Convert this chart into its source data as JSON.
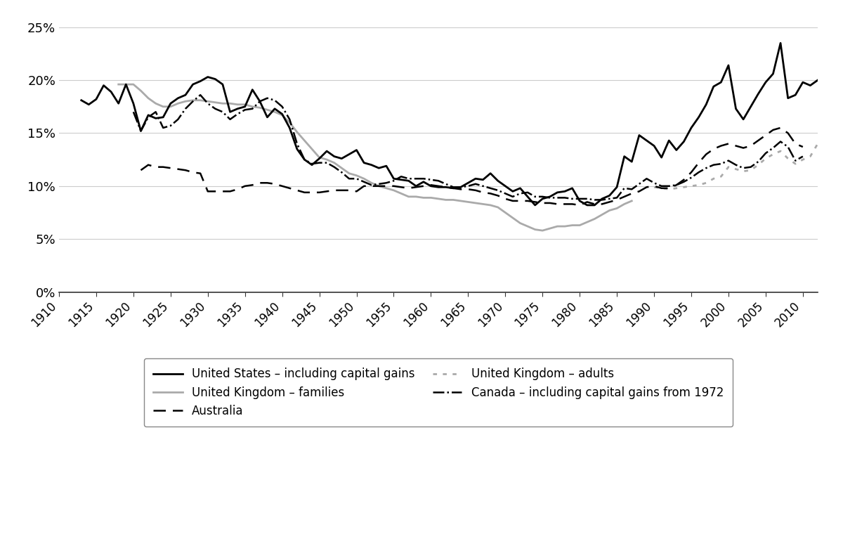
{
  "xlim": [
    1910,
    2012
  ],
  "ylim": [
    0,
    0.26
  ],
  "yticks": [
    0,
    0.05,
    0.1,
    0.15,
    0.2,
    0.25
  ],
  "ytick_labels": [
    "0%",
    "5%",
    "10%",
    "15%",
    "20%",
    "25%"
  ],
  "xticks": [
    1910,
    1915,
    1920,
    1925,
    1930,
    1935,
    1940,
    1945,
    1950,
    1955,
    1960,
    1965,
    1970,
    1975,
    1980,
    1985,
    1990,
    1995,
    2000,
    2005,
    2010
  ],
  "background_color": "#ffffff",
  "grid_color": "#cccccc",
  "series": {
    "us": {
      "label": "United States – including capital gains",
      "color": "#000000",
      "linewidth": 2.0,
      "linestyle": "solid",
      "data": {
        "year": [
          1913,
          1914,
          1915,
          1916,
          1917,
          1918,
          1919,
          1920,
          1921,
          1922,
          1923,
          1924,
          1925,
          1926,
          1927,
          1928,
          1929,
          1930,
          1931,
          1932,
          1933,
          1934,
          1935,
          1936,
          1937,
          1938,
          1939,
          1940,
          1941,
          1942,
          1943,
          1944,
          1945,
          1946,
          1947,
          1948,
          1949,
          1950,
          1951,
          1952,
          1953,
          1954,
          1955,
          1956,
          1957,
          1958,
          1959,
          1960,
          1961,
          1962,
          1963,
          1964,
          1965,
          1966,
          1967,
          1968,
          1969,
          1970,
          1971,
          1972,
          1973,
          1974,
          1975,
          1976,
          1977,
          1978,
          1979,
          1980,
          1981,
          1982,
          1983,
          1984,
          1985,
          1986,
          1987,
          1988,
          1989,
          1990,
          1991,
          1992,
          1993,
          1994,
          1995,
          1996,
          1997,
          1998,
          1999,
          2000,
          2001,
          2002,
          2003,
          2004,
          2005,
          2006,
          2007,
          2008,
          2009,
          2010,
          2011,
          2012
        ],
        "value": [
          0.181,
          0.177,
          0.182,
          0.195,
          0.189,
          0.178,
          0.196,
          0.178,
          0.152,
          0.167,
          0.164,
          0.165,
          0.178,
          0.183,
          0.186,
          0.196,
          0.199,
          0.203,
          0.201,
          0.196,
          0.17,
          0.173,
          0.175,
          0.191,
          0.18,
          0.165,
          0.173,
          0.168,
          0.155,
          0.135,
          0.125,
          0.12,
          0.126,
          0.133,
          0.128,
          0.126,
          0.13,
          0.134,
          0.122,
          0.12,
          0.117,
          0.119,
          0.107,
          0.106,
          0.105,
          0.1,
          0.104,
          0.1,
          0.099,
          0.099,
          0.098,
          0.099,
          0.103,
          0.107,
          0.106,
          0.112,
          0.105,
          0.1,
          0.095,
          0.098,
          0.09,
          0.082,
          0.088,
          0.09,
          0.094,
          0.095,
          0.098,
          0.086,
          0.082,
          0.082,
          0.088,
          0.091,
          0.099,
          0.128,
          0.123,
          0.148,
          0.143,
          0.138,
          0.127,
          0.143,
          0.134,
          0.142,
          0.155,
          0.165,
          0.177,
          0.194,
          0.198,
          0.214,
          0.173,
          0.163,
          0.175,
          0.187,
          0.198,
          0.206,
          0.235,
          0.183,
          0.186,
          0.198,
          0.195,
          0.2
        ]
      }
    },
    "australia": {
      "label": "Australia",
      "color": "#000000",
      "linewidth": 1.8,
      "linestyle": "dashed",
      "dash_pattern": [
        7,
        4
      ],
      "data": {
        "year": [
          1921,
          1922,
          1923,
          1924,
          1925,
          1926,
          1927,
          1928,
          1929,
          1930,
          1931,
          1932,
          1933,
          1934,
          1935,
          1936,
          1937,
          1938,
          1939,
          1940,
          1941,
          1942,
          1943,
          1944,
          1945,
          1946,
          1947,
          1948,
          1949,
          1950,
          1951,
          1952,
          1953,
          1954,
          1955,
          1956,
          1957,
          1958,
          1959,
          1960,
          1961,
          1962,
          1963,
          1964,
          1965,
          1966,
          1967,
          1968,
          1969,
          1970,
          1971,
          1972,
          1973,
          1974,
          1975,
          1976,
          1977,
          1978,
          1979,
          1980,
          1981,
          1982,
          1983,
          1984,
          1985,
          1986,
          1987,
          1988,
          1989,
          1990,
          1991,
          1992,
          1993,
          1994,
          1995,
          1996,
          1997,
          1998,
          1999,
          2000,
          2001,
          2002,
          2003,
          2004,
          2005,
          2006,
          2007,
          2008,
          2009,
          2010
        ],
        "value": [
          0.115,
          0.12,
          0.118,
          0.118,
          0.117,
          0.116,
          0.115,
          0.113,
          0.112,
          0.095,
          0.095,
          0.095,
          0.095,
          0.097,
          0.1,
          0.101,
          0.103,
          0.103,
          0.102,
          0.1,
          0.098,
          0.096,
          0.094,
          0.094,
          0.094,
          0.095,
          0.096,
          0.096,
          0.096,
          0.095,
          0.1,
          0.1,
          0.1,
          0.1,
          0.1,
          0.099,
          0.098,
          0.099,
          0.1,
          0.101,
          0.1,
          0.099,
          0.098,
          0.097,
          0.097,
          0.096,
          0.094,
          0.093,
          0.091,
          0.088,
          0.086,
          0.086,
          0.086,
          0.085,
          0.084,
          0.084,
          0.083,
          0.083,
          0.083,
          0.082,
          0.085,
          0.083,
          0.083,
          0.085,
          0.087,
          0.09,
          0.093,
          0.095,
          0.099,
          0.1,
          0.098,
          0.098,
          0.101,
          0.106,
          0.113,
          0.122,
          0.13,
          0.135,
          0.138,
          0.14,
          0.138,
          0.136,
          0.138,
          0.143,
          0.148,
          0.153,
          0.155,
          0.15,
          0.14,
          0.137
        ]
      }
    },
    "canada": {
      "label": "Canada – including capital gains from 1972",
      "color": "#000000",
      "linewidth": 1.8,
      "linestyle": "dashdot",
      "data": {
        "year": [
          1920,
          1921,
          1922,
          1923,
          1924,
          1925,
          1926,
          1927,
          1928,
          1929,
          1930,
          1931,
          1932,
          1933,
          1934,
          1935,
          1936,
          1937,
          1938,
          1939,
          1940,
          1941,
          1942,
          1943,
          1944,
          1945,
          1946,
          1947,
          1948,
          1949,
          1950,
          1951,
          1952,
          1953,
          1954,
          1955,
          1956,
          1957,
          1958,
          1959,
          1960,
          1961,
          1962,
          1963,
          1964,
          1965,
          1966,
          1967,
          1968,
          1969,
          1970,
          1971,
          1972,
          1973,
          1974,
          1975,
          1976,
          1977,
          1978,
          1979,
          1980,
          1981,
          1982,
          1983,
          1984,
          1985,
          1986,
          1987,
          1988,
          1989,
          1990,
          1991,
          1992,
          1993,
          1994,
          1995,
          1996,
          1997,
          1998,
          1999,
          2000,
          2001,
          2002,
          2003,
          2004,
          2005,
          2006,
          2007,
          2008,
          2009,
          2010
        ],
        "value": [
          0.17,
          0.152,
          0.165,
          0.17,
          0.155,
          0.157,
          0.163,
          0.173,
          0.18,
          0.186,
          0.178,
          0.173,
          0.17,
          0.163,
          0.168,
          0.172,
          0.173,
          0.18,
          0.183,
          0.181,
          0.175,
          0.163,
          0.14,
          0.125,
          0.121,
          0.122,
          0.122,
          0.118,
          0.113,
          0.107,
          0.107,
          0.104,
          0.101,
          0.102,
          0.103,
          0.105,
          0.109,
          0.107,
          0.107,
          0.107,
          0.106,
          0.105,
          0.102,
          0.099,
          0.099,
          0.1,
          0.102,
          0.1,
          0.098,
          0.096,
          0.093,
          0.09,
          0.093,
          0.094,
          0.09,
          0.09,
          0.089,
          0.089,
          0.089,
          0.088,
          0.088,
          0.088,
          0.087,
          0.087,
          0.088,
          0.089,
          0.098,
          0.097,
          0.102,
          0.107,
          0.103,
          0.1,
          0.1,
          0.101,
          0.104,
          0.108,
          0.113,
          0.117,
          0.12,
          0.121,
          0.124,
          0.12,
          0.117,
          0.118,
          0.123,
          0.131,
          0.136,
          0.142,
          0.137,
          0.124,
          0.128
        ]
      }
    },
    "uk_families": {
      "label": "United Kingdom – families",
      "color": "#aaaaaa",
      "linewidth": 2.0,
      "linestyle": "solid",
      "data": {
        "year": [
          1918,
          1919,
          1920,
          1921,
          1922,
          1923,
          1924,
          1925,
          1926,
          1927,
          1928,
          1929,
          1930,
          1931,
          1932,
          1933,
          1934,
          1935,
          1936,
          1937,
          1938,
          1939,
          1940,
          1941,
          1942,
          1943,
          1944,
          1945,
          1946,
          1947,
          1948,
          1949,
          1950,
          1951,
          1952,
          1953,
          1954,
          1955,
          1956,
          1957,
          1958,
          1959,
          1960,
          1961,
          1962,
          1963,
          1964,
          1965,
          1966,
          1967,
          1968,
          1969,
          1970,
          1971,
          1972,
          1973,
          1974,
          1975,
          1976,
          1977,
          1978,
          1979,
          1980,
          1981,
          1982,
          1983,
          1984,
          1985,
          1986,
          1987
        ],
        "value": [
          0.196,
          0.196,
          0.196,
          0.19,
          0.183,
          0.178,
          0.175,
          0.175,
          0.178,
          0.18,
          0.181,
          0.181,
          0.18,
          0.179,
          0.178,
          0.178,
          0.177,
          0.177,
          0.175,
          0.174,
          0.172,
          0.17,
          0.167,
          0.16,
          0.151,
          0.143,
          0.135,
          0.127,
          0.125,
          0.122,
          0.117,
          0.112,
          0.11,
          0.107,
          0.103,
          0.1,
          0.098,
          0.096,
          0.093,
          0.09,
          0.09,
          0.089,
          0.089,
          0.088,
          0.087,
          0.087,
          0.086,
          0.085,
          0.084,
          0.083,
          0.082,
          0.08,
          0.075,
          0.07,
          0.065,
          0.062,
          0.059,
          0.058,
          0.06,
          0.062,
          0.062,
          0.063,
          0.063,
          0.066,
          0.069,
          0.073,
          0.077,
          0.079,
          0.083,
          0.086
        ]
      }
    },
    "uk_adults": {
      "label": "United Kingdom – adults",
      "color": "#aaaaaa",
      "linewidth": 2.0,
      "linestyle": "dotted",
      "dot_pattern": [
        2,
        3
      ],
      "data": {
        "year": [
          1990,
          1991,
          1992,
          1993,
          1994,
          1995,
          1996,
          1997,
          1998,
          1999,
          2000,
          2001,
          2002,
          2003,
          2004,
          2005,
          2006,
          2007,
          2008,
          2009,
          2010,
          2011,
          2012
        ],
        "value": [
          0.099,
          0.098,
          0.097,
          0.098,
          0.099,
          0.1,
          0.101,
          0.103,
          0.107,
          0.109,
          0.118,
          0.116,
          0.114,
          0.115,
          0.12,
          0.126,
          0.13,
          0.133,
          0.126,
          0.121,
          0.125,
          0.128,
          0.14
        ]
      }
    }
  },
  "legend": {
    "fontsize": 12,
    "handlelength": 2.5,
    "ncol": 2
  }
}
